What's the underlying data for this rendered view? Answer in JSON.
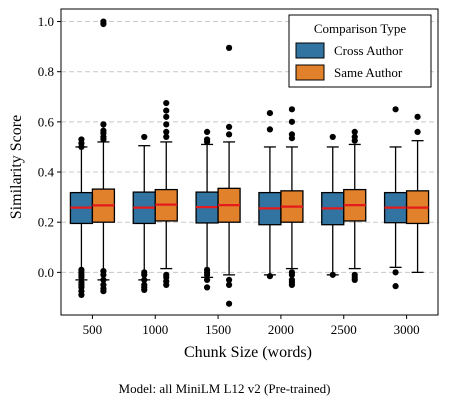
{
  "chart_data": {
    "type": "box",
    "xlabel": "Chunk Size (words)",
    "ylabel": "Similarity Score",
    "categories": [
      "500",
      "1000",
      "1500",
      "2000",
      "2500",
      "3000"
    ],
    "ylim": [
      -0.17,
      1.05
    ],
    "yticks": [
      0.0,
      0.2,
      0.4,
      0.6,
      0.8,
      1.0
    ],
    "ytick_labels": [
      "0.0",
      "0.2",
      "0.4",
      "0.6",
      "0.8",
      "1.0"
    ],
    "grid": "y-dashed",
    "legend": {
      "title": "Comparison Type",
      "placement": "top-right"
    },
    "median_color": "#e41a1c",
    "series": [
      {
        "name": "Cross Author",
        "color": "#3274a1",
        "boxes": [
          {
            "whislo": -0.03,
            "q1": 0.195,
            "med": 0.258,
            "q3": 0.318,
            "whishi": 0.5,
            "fliers": [
              0.53,
              0.515,
              0.5,
              0.01,
              0.0,
              -0.01,
              -0.02,
              -0.04,
              -0.05,
              -0.06,
              -0.075,
              -0.09
            ]
          },
          {
            "whislo": -0.03,
            "q1": 0.195,
            "med": 0.258,
            "q3": 0.32,
            "whishi": 0.505,
            "fliers": [
              0.54,
              0.0,
              -0.01,
              -0.03,
              -0.05,
              -0.06,
              -0.07
            ]
          },
          {
            "whislo": -0.02,
            "q1": 0.197,
            "med": 0.26,
            "q3": 0.32,
            "whishi": 0.51,
            "fliers": [
              0.56,
              0.53,
              0.52,
              0.01,
              0.0,
              -0.01,
              -0.03,
              -0.06
            ]
          },
          {
            "whislo": -0.01,
            "q1": 0.19,
            "med": 0.255,
            "q3": 0.318,
            "whishi": 0.5,
            "fliers": [
              0.635,
              0.57,
              -0.015
            ]
          },
          {
            "whislo": -0.01,
            "q1": 0.19,
            "med": 0.255,
            "q3": 0.318,
            "whishi": 0.5,
            "fliers": [
              0.54,
              -0.01
            ]
          },
          {
            "whislo": 0.02,
            "q1": 0.198,
            "med": 0.258,
            "q3": 0.318,
            "whishi": 0.5,
            "fliers": [
              0.65,
              0.0,
              -0.055
            ]
          }
        ]
      },
      {
        "name": "Same Author",
        "color": "#e1812c",
        "boxes": [
          {
            "whislo": -0.03,
            "q1": 0.2,
            "med": 0.267,
            "q3": 0.332,
            "whishi": 0.52,
            "fliers": [
              1.0,
              0.99,
              0.59,
              0.565,
              0.555,
              0.54,
              0.53,
              0.005,
              -0.01,
              -0.03,
              -0.05,
              -0.065,
              -0.075
            ]
          },
          {
            "whislo": 0.015,
            "q1": 0.205,
            "med": 0.27,
            "q3": 0.33,
            "whishi": 0.52,
            "fliers": [
              0.675,
              0.645,
              0.62,
              0.59,
              0.56,
              0.54,
              -0.01,
              -0.02,
              -0.035,
              -0.05
            ]
          },
          {
            "whislo": -0.01,
            "q1": 0.2,
            "med": 0.268,
            "q3": 0.335,
            "whishi": 0.52,
            "fliers": [
              0.895,
              0.58,
              0.55,
              -0.03,
              -0.05,
              -0.125
            ]
          },
          {
            "whislo": 0.015,
            "q1": 0.2,
            "med": 0.262,
            "q3": 0.325,
            "whishi": 0.5,
            "fliers": [
              0.65,
              0.6,
              0.55,
              0.535,
              0.0,
              -0.01,
              -0.03,
              -0.04,
              -0.05
            ]
          },
          {
            "whislo": 0.015,
            "q1": 0.205,
            "med": 0.268,
            "q3": 0.33,
            "whishi": 0.51,
            "fliers": [
              0.56,
              0.54,
              0.525,
              -0.01,
              -0.02,
              -0.03
            ]
          },
          {
            "whislo": 0.0,
            "q1": 0.195,
            "med": 0.258,
            "q3": 0.325,
            "whishi": 0.525,
            "fliers": [
              0.62,
              0.56
            ]
          }
        ]
      }
    ]
  },
  "caption": "Model: all MiniLM L12 v2 (Pre-trained)"
}
